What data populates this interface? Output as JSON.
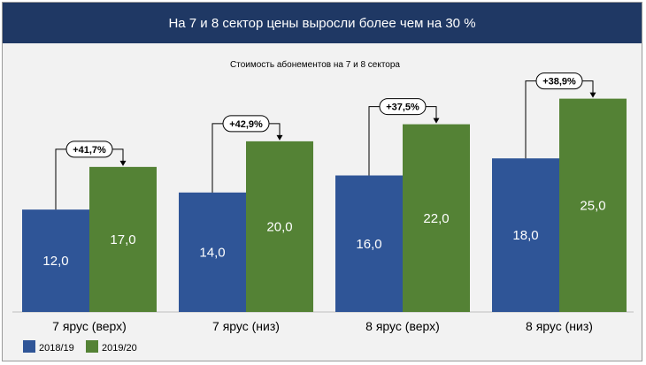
{
  "header": {
    "title": "На 7 и 8 сектор цены выросли более чем на 30 %"
  },
  "colors": {
    "header_bg": "#1f3864",
    "series_2018": "#2f5597",
    "series_2019": "#548235",
    "background": "#f2f2f2"
  },
  "chart_data": {
    "type": "bar",
    "title": "Стоимость абонементов на 7 и 8 сектора",
    "categories": [
      "7 ярус (верх)",
      "7 ярус (низ)",
      "8 ярус (верх)",
      "8 ярус (низ)"
    ],
    "series": [
      {
        "name": "2018/19",
        "values": [
          12.0,
          14.0,
          16.0,
          18.0
        ],
        "labels": [
          "12,0",
          "14,0",
          "16,0",
          "18,0"
        ],
        "color": "#2f5597"
      },
      {
        "name": "2019/20",
        "values": [
          17.0,
          20.0,
          22.0,
          25.0
        ],
        "labels": [
          "17,0",
          "20,0",
          "22,0",
          "25,0"
        ],
        "color": "#548235"
      }
    ],
    "annotations": [
      "+41,7%",
      "+42,9%",
      "+37,5%",
      "+38,9%"
    ],
    "ylim": [
      0,
      29
    ],
    "grid": false,
    "legend": "bottom-left",
    "xlabel": "",
    "ylabel": ""
  }
}
